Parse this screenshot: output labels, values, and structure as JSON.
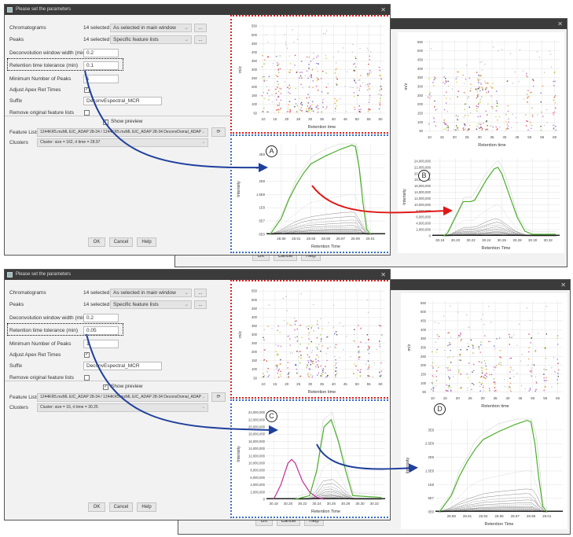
{
  "dialogs": [
    {
      "title": "Please set the parameters",
      "chromatograms": {
        "label": "Chromatograms",
        "count": "14 selected",
        "value": "As selected in main window",
        "more": "..."
      },
      "peaks": {
        "label": "Peaks",
        "count": "14 selected",
        "value": "Specific feature lists",
        "more": "..."
      },
      "deconv_width": {
        "label": "Deconvolution window width (min)",
        "value": "0.2"
      },
      "rt_tolerance": {
        "label": "Retention time tolerance (min)",
        "value": "0.1"
      },
      "min_peaks": {
        "label": "Minimum Number of Peaks",
        "value": "1"
      },
      "adjust_apex": {
        "label": "Adjust Apex Ret Times",
        "checked": true
      },
      "suffix": {
        "label": "Suffix",
        "value": "DeconvEspectral_MCR"
      },
      "remove_original": {
        "label": "Remove original feature lists",
        "checked": false
      },
      "show_preview": {
        "label": "Show preview",
        "checked": true
      },
      "feature_lists": {
        "label": "Feature Lists",
        "value": "1244KR5.mzML EIC_ADAP 28-34 / 1244KR5.mzML EIC_ADAP 28-34 DeconvDomal_ADAP"
      },
      "clusters": {
        "label": "Clusters",
        "value": "Cluster: size = 162, rt time = 28.97"
      },
      "buttons": {
        "ok": "OK",
        "cancel": "Cancel",
        "help": "Help"
      },
      "marker": "A"
    },
    {
      "buttons": {
        "ok": "OK",
        "cancel": "Cancel",
        "help": "Help"
      },
      "marker": "B"
    },
    {
      "title": "Please set the parameters",
      "chromatograms": {
        "label": "Chromatograms",
        "count": "14 selected",
        "value": "As selected in main window",
        "more": "..."
      },
      "peaks": {
        "label": "Peaks",
        "count": "14 selected",
        "value": "Specific feature lists",
        "more": "..."
      },
      "deconv_width": {
        "label": "Deconvolution window width (min)",
        "value": "0.2"
      },
      "rt_tolerance": {
        "label": "Retention time tolerance (min)",
        "value": "0.05"
      },
      "min_peaks": {
        "label": "Minimum Number of Peaks",
        "value": "1"
      },
      "adjust_apex": {
        "label": "Adjust Apex Ret Times",
        "checked": true
      },
      "suffix": {
        "label": "Suffix",
        "value": "DeconvEspectral_MCR"
      },
      "remove_original": {
        "label": "Remove original feature lists",
        "checked": false
      },
      "show_preview": {
        "label": "Show preview",
        "checked": true
      },
      "feature_lists": {
        "label": "Feature Lists",
        "value": "1244KR5.mzML EIC_ADAP 28-34 / 1244KR5.mzML EIC_ADAP 28-34 DeconvDomal_ADAP"
      },
      "clusters": {
        "label": "Clusters",
        "value": "Cluster: size = 16, rt time = 30.25"
      },
      "buttons": {
        "ok": "OK",
        "cancel": "Cancel",
        "help": "Help"
      },
      "marker": "C"
    },
    {
      "buttons": {
        "ok": "OK",
        "cancel": "Cancel",
        "help": "Help"
      },
      "marker": "D"
    }
  ],
  "colors": {
    "green": "#4caf2a",
    "magenta": "#c2309a",
    "blue_arrow": "#1f3f9c",
    "red_arrow": "#e01818"
  },
  "chart_data": [
    {
      "type": "scatter",
      "xlabel": "Retention time",
      "ylabel": "m/z",
      "xlim": [
        8,
        62
      ],
      "ylim": [
        40,
        560
      ],
      "xticks": [
        "10",
        "15",
        "20",
        "25",
        "30",
        "35",
        "40",
        "45",
        "50",
        "55",
        "60"
      ],
      "yticks": [
        "50",
        "100",
        "150",
        "200",
        "250",
        "300",
        "350",
        "400",
        "450",
        "500",
        "550"
      ]
    },
    {
      "type": "line",
      "xlabel": "Retention Time",
      "ylabel": "Intensity",
      "xlim": [
        28.87,
        29.03
      ],
      "ylim": [
        0,
        340000000
      ],
      "xtick_values": [
        28.89,
        28.91,
        28.93,
        28.95,
        28.97,
        28.99,
        29.01
      ],
      "xticks": [
        "28.89",
        "28.91",
        "28.93",
        "28.95",
        "28.97",
        "28.99",
        "29.01"
      ],
      "ytick_values": [
        0,
        50000000,
        100000000,
        150000000,
        200000000,
        250000000,
        300000000
      ],
      "yticks": [
        "0E0",
        "5E7",
        "1E8",
        "1.5E8",
        "2E8",
        "2.5E8",
        "3E8"
      ],
      "series": [
        {
          "name": "deconvoluted",
          "color": "green",
          "points": [
            [
              28.875,
              0
            ],
            [
              28.89,
              60000000
            ],
            [
              28.9,
              130000000
            ],
            [
              28.91,
              185000000
            ],
            [
              28.92,
              230000000
            ],
            [
              28.93,
              265000000
            ],
            [
              28.95,
              295000000
            ],
            [
              28.97,
              320000000
            ],
            [
              28.985,
              335000000
            ],
            [
              28.99,
              330000000
            ],
            [
              28.995,
              250000000
            ],
            [
              29.0,
              120000000
            ],
            [
              29.005,
              20000000
            ],
            [
              29.01,
              0
            ]
          ]
        }
      ]
    },
    {
      "type": "scatter",
      "xlabel": "Retention time",
      "ylabel": "m/z",
      "xlim": [
        8,
        62
      ],
      "ylim": [
        40,
        560
      ],
      "xticks": [
        "10",
        "15",
        "20",
        "25",
        "30",
        "35",
        "40",
        "45",
        "50",
        "55",
        "60"
      ],
      "yticks": [
        "50",
        "100",
        "150",
        "200",
        "250",
        "300",
        "350",
        "400",
        "450",
        "500",
        "550"
      ]
    },
    {
      "type": "line",
      "xlabel": "Retention Time",
      "ylabel": "Intensity",
      "xlim": [
        30.17,
        30.335
      ],
      "ylim": [
        0,
        25000000
      ],
      "xtick_values": [
        30.18,
        30.2,
        30.22,
        30.24,
        30.26,
        30.28,
        30.3,
        30.32
      ],
      "xticks": [
        "30.18",
        "30.20",
        "30.22",
        "30.24",
        "30.26",
        "30.28",
        "30.30",
        "30.32"
      ],
      "ytick_values": [
        0,
        2000000,
        4000000,
        6000000,
        8000000,
        10000000,
        12000000,
        14000000,
        16000000,
        18000000,
        20000000,
        22000000,
        24000000
      ],
      "yticks": [
        "0",
        "2,000,000",
        "4,000,000",
        "6,000,000",
        "8,000,000",
        "10,000,000",
        "12,000,000",
        "14,000,000",
        "16,000,000",
        "18,000,000",
        "20,000,000",
        "22,000,000",
        "24,000,000"
      ],
      "series": [
        {
          "name": "deconvoluted",
          "color": "green",
          "points": [
            [
              30.185,
              0
            ],
            [
              30.19,
              1000000
            ],
            [
              30.2,
              6000000
            ],
            [
              30.21,
              11000000
            ],
            [
              30.22,
              11000000
            ],
            [
              30.225,
              11500000
            ],
            [
              30.24,
              18000000
            ],
            [
              30.25,
              21500000
            ],
            [
              30.255,
              22000000
            ],
            [
              30.26,
              20000000
            ],
            [
              30.27,
              13000000
            ],
            [
              30.28,
              6000000
            ],
            [
              30.29,
              1500000
            ],
            [
              30.3,
              500000
            ],
            [
              30.33,
              500000
            ]
          ]
        }
      ]
    },
    {
      "type": "scatter",
      "xlabel": "Retention time",
      "ylabel": "m/z",
      "xlim": [
        8,
        62
      ],
      "ylim": [
        40,
        560
      ],
      "xticks": [
        "10",
        "15",
        "20",
        "25",
        "30",
        "35",
        "40",
        "45",
        "50",
        "55",
        "60"
      ],
      "yticks": [
        "50",
        "100",
        "150",
        "200",
        "250",
        "300",
        "350",
        "400",
        "450",
        "500",
        "550"
      ]
    },
    {
      "type": "line",
      "xlabel": "Retention Time",
      "ylabel": "Intensity",
      "xlim": [
        30.17,
        30.335
      ],
      "ylim": [
        0,
        25000000
      ],
      "xtick_values": [
        30.18,
        30.2,
        30.22,
        30.24,
        30.26,
        30.28,
        30.3,
        30.32
      ],
      "xticks": [
        "30.18",
        "30.20",
        "30.22",
        "30.24",
        "30.26",
        "30.28",
        "30.30",
        "30.32"
      ],
      "ytick_values": [
        0,
        2000000,
        4000000,
        6000000,
        8000000,
        10000000,
        12000000,
        14000000,
        16000000,
        18000000,
        20000000,
        22000000,
        24000000
      ],
      "yticks": [
        "0",
        "2,000,000",
        "4,000,000",
        "6,000,000",
        "8,000,000",
        "10,000,000",
        "12,000,000",
        "14,000,000",
        "16,000,000",
        "18,000,000",
        "20,000,000",
        "22,000,000",
        "24,000,000"
      ],
      "series": [
        {
          "name": "deconvoluted-1",
          "color": "magenta",
          "points": [
            [
              30.18,
              0
            ],
            [
              30.19,
              4000000
            ],
            [
              30.2,
              10000000
            ],
            [
              30.205,
              11000000
            ],
            [
              30.21,
              10000000
            ],
            [
              30.22,
              5000000
            ],
            [
              30.23,
              2000000
            ],
            [
              30.24,
              500000
            ],
            [
              30.25,
              0
            ]
          ]
        },
        {
          "name": "deconvoluted-2",
          "color": "green",
          "points": [
            [
              30.21,
              0
            ],
            [
              30.22,
              500000
            ],
            [
              30.23,
              1000000
            ],
            [
              30.24,
              8000000
            ],
            [
              30.25,
              20000000
            ],
            [
              30.26,
              22000000
            ],
            [
              30.27,
              16000000
            ],
            [
              30.28,
              8000000
            ],
            [
              30.29,
              1000000
            ],
            [
              30.33,
              500000
            ]
          ]
        }
      ]
    },
    {
      "type": "scatter",
      "xlabel": "Retention time",
      "ylabel": "m/z",
      "xlim": [
        8,
        62
      ],
      "ylim": [
        40,
        560
      ],
      "xticks": [
        "10",
        "15",
        "20",
        "25",
        "30",
        "35",
        "40",
        "45",
        "50",
        "55",
        "60"
      ],
      "yticks": [
        "50",
        "100",
        "150",
        "200",
        "250",
        "300",
        "350",
        "400",
        "450",
        "500",
        "550"
      ]
    },
    {
      "type": "line",
      "xlabel": "Retention Time",
      "ylabel": "Intensity",
      "xlim": [
        28.87,
        29.03
      ],
      "ylim": [
        0,
        340000000
      ],
      "xtick_values": [
        28.89,
        28.91,
        28.93,
        28.95,
        28.97,
        28.99,
        29.01
      ],
      "xticks": [
        "28.89",
        "28.91",
        "28.93",
        "28.95",
        "28.97",
        "28.99",
        "29.01"
      ],
      "ytick_values": [
        0,
        50000000,
        100000000,
        150000000,
        200000000,
        250000000,
        300000000
      ],
      "yticks": [
        "0E0",
        "5E7",
        "1E8",
        "1.5E8",
        "2E8",
        "2.5E8",
        "3E8"
      ],
      "series": [
        {
          "name": "deconvoluted",
          "color": "green",
          "points": [
            [
              28.875,
              0
            ],
            [
              28.89,
              60000000
            ],
            [
              28.9,
              130000000
            ],
            [
              28.91,
              185000000
            ],
            [
              28.92,
              230000000
            ],
            [
              28.93,
              265000000
            ],
            [
              28.95,
              295000000
            ],
            [
              28.97,
              320000000
            ],
            [
              28.985,
              335000000
            ],
            [
              28.99,
              330000000
            ],
            [
              28.995,
              250000000
            ],
            [
              29.0,
              120000000
            ],
            [
              29.005,
              20000000
            ],
            [
              29.01,
              0
            ]
          ]
        }
      ]
    }
  ]
}
